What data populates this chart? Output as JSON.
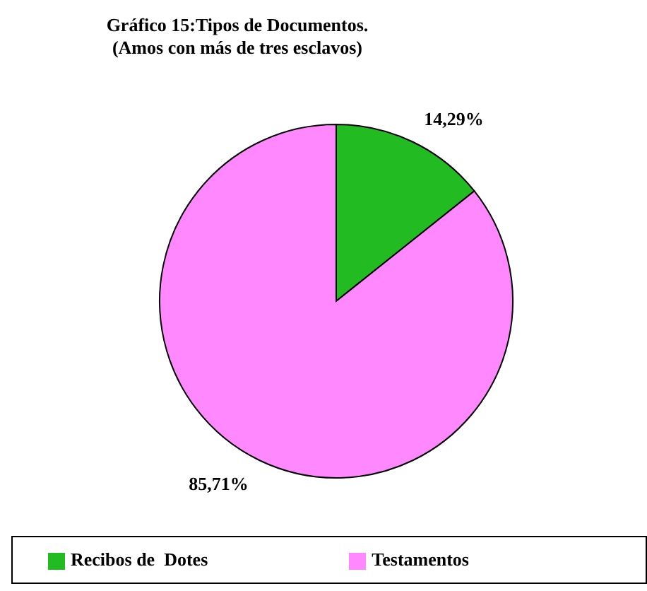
{
  "chart_data": {
    "type": "pie",
    "title": "Gráfico 15:Tipos de Documentos.",
    "subtitle": "(Amos con más de tres esclavos)",
    "categories": [
      "Recibos de  Dotes",
      "Testamentos"
    ],
    "values": [
      14.29,
      85.71
    ],
    "colors": [
      "#22bb22",
      "#ff88ff"
    ],
    "value_labels": [
      "14,29%",
      "85,71%"
    ],
    "legend": "bottom"
  }
}
